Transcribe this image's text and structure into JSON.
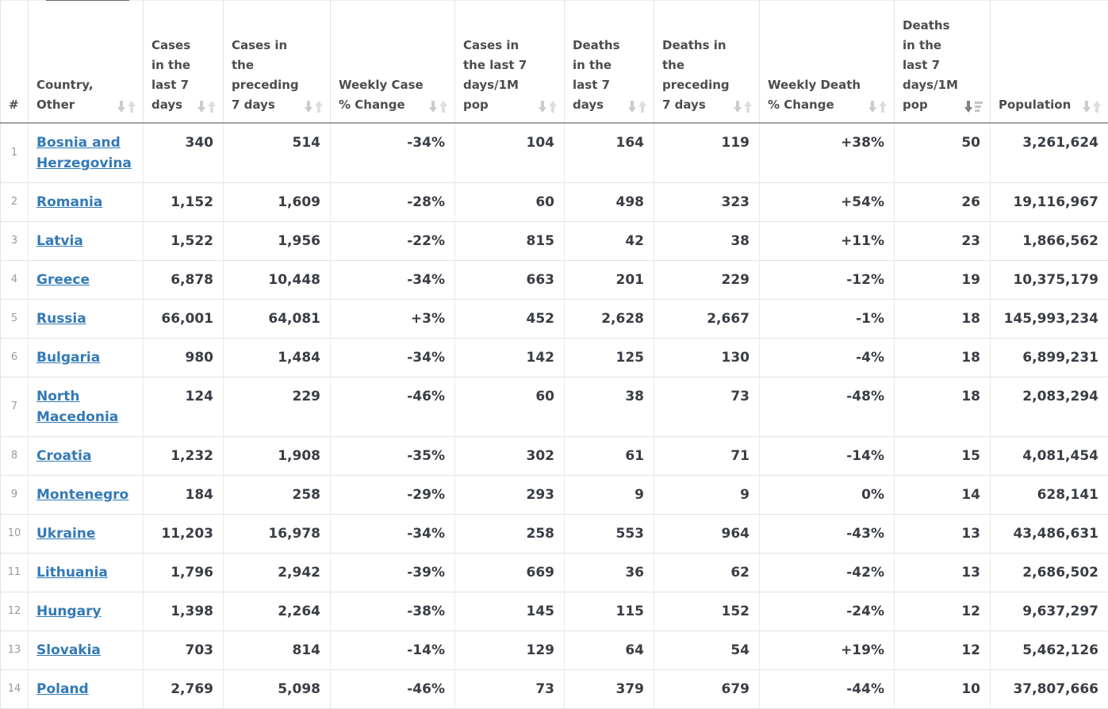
{
  "page": {
    "top_tab_fragment": "tab-bottom-edge"
  },
  "table": {
    "columns": [
      {
        "key": "rank",
        "label": "#",
        "sort": null
      },
      {
        "key": "country",
        "label": "Country, Other",
        "sort": "inactive"
      },
      {
        "key": "cases_7d",
        "label": "Cases in the last 7 days",
        "sort": "inactive"
      },
      {
        "key": "cases_prev_7d",
        "label": "Cases in the preceding 7 days",
        "sort": "inactive"
      },
      {
        "key": "weekly_case_change",
        "label": "Weekly Case % Change",
        "sort": "inactive"
      },
      {
        "key": "cases_per_1m",
        "label": "Cases in the last 7 days/1M pop",
        "sort": "inactive"
      },
      {
        "key": "deaths_7d",
        "label": "Deaths in the last 7 days",
        "sort": "inactive"
      },
      {
        "key": "deaths_prev_7d",
        "label": "Deaths in the preceding 7 days",
        "sort": "inactive"
      },
      {
        "key": "weekly_death_change",
        "label": "Weekly Death % Change",
        "sort": "inactive"
      },
      {
        "key": "deaths_per_1m",
        "label": "Deaths in the last 7 days/1M pop",
        "sort": "desc"
      },
      {
        "key": "population",
        "label": "Population",
        "sort": "inactive"
      }
    ],
    "rows": [
      {
        "rank": "1",
        "country": "Bosnia and Herzegovina",
        "cases_7d": "340",
        "cases_prev_7d": "514",
        "weekly_case_change": "-34%",
        "cases_per_1m": "104",
        "deaths_7d": "164",
        "deaths_prev_7d": "119",
        "weekly_death_change": "+38%",
        "deaths_per_1m": "50",
        "population": "3,261,624"
      },
      {
        "rank": "2",
        "country": "Romania",
        "cases_7d": "1,152",
        "cases_prev_7d": "1,609",
        "weekly_case_change": "-28%",
        "cases_per_1m": "60",
        "deaths_7d": "498",
        "deaths_prev_7d": "323",
        "weekly_death_change": "+54%",
        "deaths_per_1m": "26",
        "population": "19,116,967"
      },
      {
        "rank": "3",
        "country": "Latvia",
        "cases_7d": "1,522",
        "cases_prev_7d": "1,956",
        "weekly_case_change": "-22%",
        "cases_per_1m": "815",
        "deaths_7d": "42",
        "deaths_prev_7d": "38",
        "weekly_death_change": "+11%",
        "deaths_per_1m": "23",
        "population": "1,866,562"
      },
      {
        "rank": "4",
        "country": "Greece",
        "cases_7d": "6,878",
        "cases_prev_7d": "10,448",
        "weekly_case_change": "-34%",
        "cases_per_1m": "663",
        "deaths_7d": "201",
        "deaths_prev_7d": "229",
        "weekly_death_change": "-12%",
        "deaths_per_1m": "19",
        "population": "10,375,179"
      },
      {
        "rank": "5",
        "country": "Russia",
        "cases_7d": "66,001",
        "cases_prev_7d": "64,081",
        "weekly_case_change": "+3%",
        "cases_per_1m": "452",
        "deaths_7d": "2,628",
        "deaths_prev_7d": "2,667",
        "weekly_death_change": "-1%",
        "deaths_per_1m": "18",
        "population": "145,993,234"
      },
      {
        "rank": "6",
        "country": "Bulgaria",
        "cases_7d": "980",
        "cases_prev_7d": "1,484",
        "weekly_case_change": "-34%",
        "cases_per_1m": "142",
        "deaths_7d": "125",
        "deaths_prev_7d": "130",
        "weekly_death_change": "-4%",
        "deaths_per_1m": "18",
        "population": "6,899,231"
      },
      {
        "rank": "7",
        "country": "North Macedonia",
        "cases_7d": "124",
        "cases_prev_7d": "229",
        "weekly_case_change": "-46%",
        "cases_per_1m": "60",
        "deaths_7d": "38",
        "deaths_prev_7d": "73",
        "weekly_death_change": "-48%",
        "deaths_per_1m": "18",
        "population": "2,083,294"
      },
      {
        "rank": "8",
        "country": "Croatia",
        "cases_7d": "1,232",
        "cases_prev_7d": "1,908",
        "weekly_case_change": "-35%",
        "cases_per_1m": "302",
        "deaths_7d": "61",
        "deaths_prev_7d": "71",
        "weekly_death_change": "-14%",
        "deaths_per_1m": "15",
        "population": "4,081,454"
      },
      {
        "rank": "9",
        "country": "Montenegro",
        "cases_7d": "184",
        "cases_prev_7d": "258",
        "weekly_case_change": "-29%",
        "cases_per_1m": "293",
        "deaths_7d": "9",
        "deaths_prev_7d": "9",
        "weekly_death_change": "0%",
        "deaths_per_1m": "14",
        "population": "628,141"
      },
      {
        "rank": "10",
        "country": "Ukraine",
        "cases_7d": "11,203",
        "cases_prev_7d": "16,978",
        "weekly_case_change": "-34%",
        "cases_per_1m": "258",
        "deaths_7d": "553",
        "deaths_prev_7d": "964",
        "weekly_death_change": "-43%",
        "deaths_per_1m": "13",
        "population": "43,486,631"
      },
      {
        "rank": "11",
        "country": "Lithuania",
        "cases_7d": "1,796",
        "cases_prev_7d": "2,942",
        "weekly_case_change": "-39%",
        "cases_per_1m": "669",
        "deaths_7d": "36",
        "deaths_prev_7d": "62",
        "weekly_death_change": "-42%",
        "deaths_per_1m": "13",
        "population": "2,686,502"
      },
      {
        "rank": "12",
        "country": "Hungary",
        "cases_7d": "1,398",
        "cases_prev_7d": "2,264",
        "weekly_case_change": "-38%",
        "cases_per_1m": "145",
        "deaths_7d": "115",
        "deaths_prev_7d": "152",
        "weekly_death_change": "-24%",
        "deaths_per_1m": "12",
        "population": "9,637,297"
      },
      {
        "rank": "13",
        "country": "Slovakia",
        "cases_7d": "703",
        "cases_prev_7d": "814",
        "weekly_case_change": "-14%",
        "cases_per_1m": "129",
        "deaths_7d": "64",
        "deaths_prev_7d": "54",
        "weekly_death_change": "+19%",
        "deaths_per_1m": "12",
        "population": "5,462,126"
      },
      {
        "rank": "14",
        "country": "Poland",
        "cases_7d": "2,769",
        "cases_prev_7d": "5,098",
        "weekly_case_change": "-46%",
        "cases_per_1m": "73",
        "deaths_7d": "379",
        "deaths_prev_7d": "679",
        "weekly_death_change": "-44%",
        "deaths_per_1m": "10",
        "population": "37,807,666"
      }
    ]
  },
  "colors": {
    "link_blue": "#337ab7",
    "header_text": "#4d4d4d",
    "number_text": "#3a3d45",
    "sort_icon_inactive": "#cccccc",
    "sort_icon_active": "#808080",
    "tab_fragment": "#646e76",
    "header_border": "#a3a3a3",
    "row_border": "#e2e2e2"
  }
}
